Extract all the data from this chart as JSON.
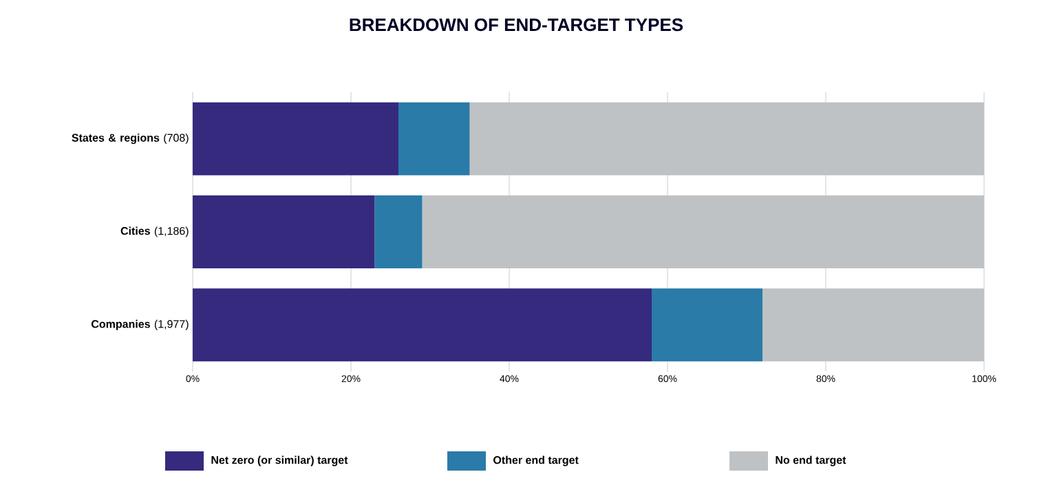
{
  "chart_data": {
    "type": "bar",
    "orientation": "horizontal",
    "stacked": true,
    "title": "BREAKDOWN OF END-TARGET TYPES",
    "categories": [
      "**States & regions** (708)",
      "**Cities** (1,186)",
      "**Companies** (1,977)"
    ],
    "series": [
      {
        "name": "Net zero (or similar) target",
        "color": "#352a7e",
        "values": [
          26,
          23,
          58
        ]
      },
      {
        "name": "Other end target",
        "color": "#2a7ba8",
        "values": [
          9,
          6,
          14
        ]
      },
      {
        "name": "No end target",
        "color": "#bfc2c4",
        "values": [
          65,
          71,
          28
        ]
      }
    ],
    "xlim": [
      0,
      100
    ],
    "xticks": [
      {
        "value": 0,
        "label": "0%"
      },
      {
        "value": 20,
        "label": "20%"
      },
      {
        "value": 40,
        "label": "40%"
      },
      {
        "value": 60,
        "label": "60%"
      },
      {
        "value": 80,
        "label": "80%"
      },
      {
        "value": 100,
        "label": "100%"
      }
    ],
    "grid": "x",
    "legend": "bottom"
  }
}
